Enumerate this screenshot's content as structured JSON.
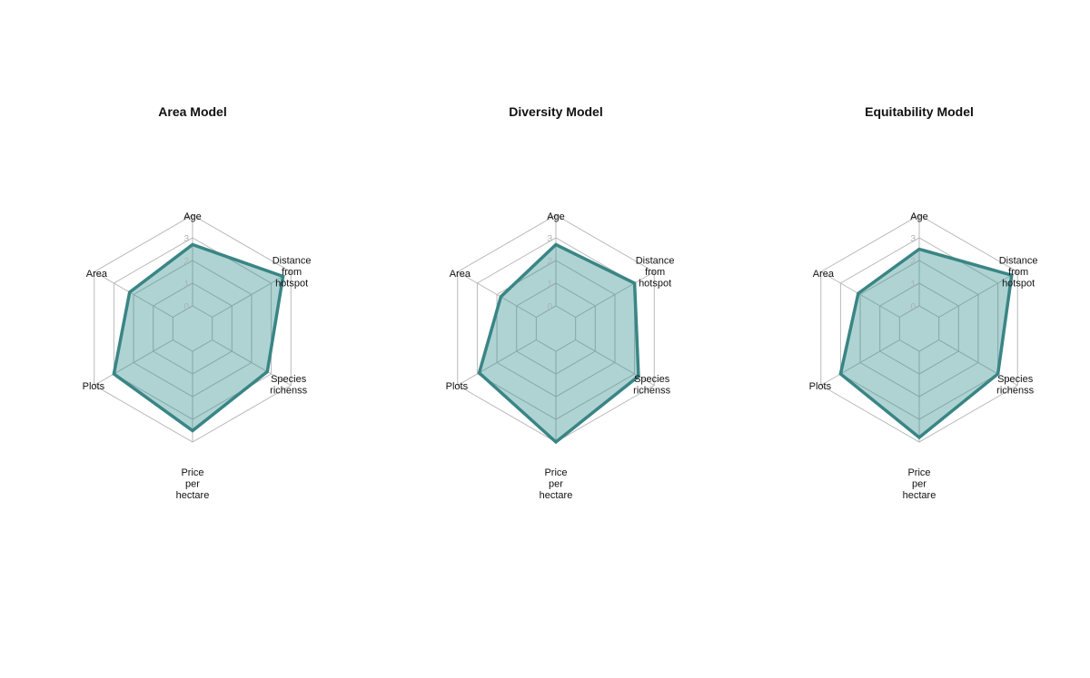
{
  "colors": {
    "fill": "#2e8b8b",
    "line": "#3a8585",
    "grid": "#b9b9b9",
    "tick": "#b0b0b0"
  },
  "chart_data": [
    {
      "type": "radar",
      "title": "Area Model",
      "axes": [
        [
          "Age"
        ],
        [
          "Distance",
          "from",
          "hotspot"
        ],
        [
          "Species",
          "richenss"
        ],
        [
          "Price",
          "per",
          "hectare"
        ],
        [
          "Plots"
        ],
        [
          "Area"
        ]
      ],
      "ticks": [
        "0",
        "1",
        "2",
        "3",
        "4"
      ],
      "range": [
        0,
        4
      ],
      "values": [
        2.7,
        3.6,
        2.8,
        3.5,
        3.0,
        2.2
      ]
    },
    {
      "type": "radar",
      "title": "Diversity Model",
      "axes": [
        [
          "Age"
        ],
        [
          "Distance",
          "from",
          "hotspot"
        ],
        [
          "Species",
          "richenss"
        ],
        [
          "Price",
          "per",
          "hectare"
        ],
        [
          "Plots"
        ],
        [
          "Area"
        ]
      ],
      "ticks": [
        "0",
        "1",
        "2",
        "3",
        "4"
      ],
      "range": [
        0,
        4
      ],
      "values": [
        2.7,
        3.0,
        3.2,
        4.0,
        2.9,
        1.8
      ]
    },
    {
      "type": "radar",
      "title": "Equitability Model",
      "axes": [
        [
          "Age"
        ],
        [
          "Distance",
          "from",
          "hotspot"
        ],
        [
          "Species",
          "richenss"
        ],
        [
          "Price",
          "per",
          "hectare"
        ],
        [
          "Plots"
        ],
        [
          "Area"
        ]
      ],
      "ticks": [
        "0",
        "1",
        "2",
        "3",
        "4"
      ],
      "range": [
        0,
        4
      ],
      "values": [
        2.5,
        3.7,
        3.0,
        3.8,
        3.0,
        2.1
      ]
    }
  ]
}
